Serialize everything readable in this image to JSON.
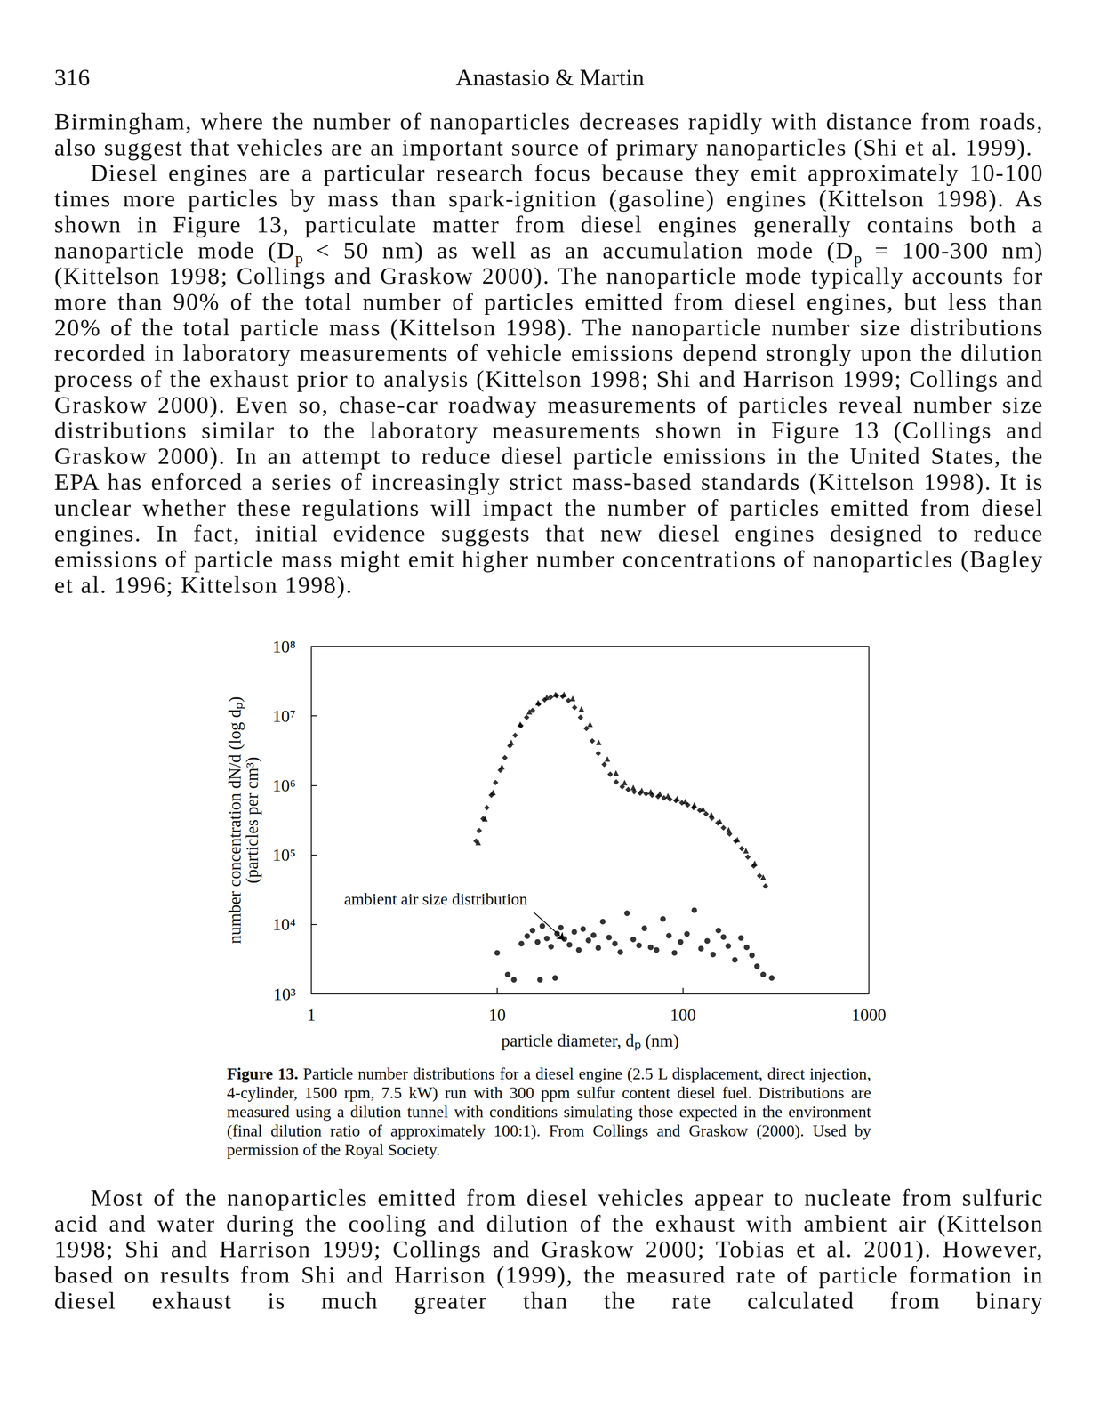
{
  "header": {
    "page_number": "316",
    "running_head": "Anastasio & Martin"
  },
  "paragraphs_before": [
    [
      "Birmingham, where the number of nanoparticles decreases rapidly with distance from roads, also suggest that vehicles are an important source of primary nanoparticles (Shi et al. 1999)."
    ],
    [
      "Diesel engines are a particular research focus because they emit approximately 10-100 times more particles by mass than spark-ignition (gasoline) engines (Kittelson 1998). As shown in Figure 13, particulate matter from diesel engines generally contains both a nanoparticle mode (D",
      {
        "sub": "p"
      },
      " < 50 nm) as well as an accumulation mode (D",
      {
        "sub": "p"
      },
      " = 100-300 nm) (Kittelson 1998; Collings and Graskow 2000). The nanoparticle mode typically accounts for more than 90% of the total number of particles emitted from diesel engines, but less than 20% of the total particle mass (Kittelson 1998). The nanoparticle number size distributions recorded in laboratory measurements of vehicle emissions depend strongly upon the dilution process of the exhaust prior to analysis (Kittelson 1998; Shi and Harrison 1999; Collings and Graskow 2000). Even so, chase-car roadway measurements of particles reveal number size distributions similar to the laboratory measurements shown in Figure 13 (Collings and Graskow 2000). In an attempt to reduce diesel particle emissions in the United States, the EPA has enforced a series of increasingly strict mass-based standards (Kittelson 1998). It is unclear whether these regulations will impact the number of particles emitted from diesel engines. In fact, initial evidence suggests that new diesel engines designed to reduce emissions of particle mass might emit higher number concentrations of nanoparticles (Bagley et al. 1996; Kittelson 1998)."
    ]
  ],
  "chart_data": {
    "type": "scatter",
    "log": true,
    "grid": false,
    "x_label": "particle diameter, dₚ (nm)",
    "y_label": [
      "number concentration dN/d (log dₚ)",
      "(particles per cm³)"
    ],
    "xlim": [
      1,
      1000
    ],
    "ylim": [
      1000,
      100000000
    ],
    "xticks": [
      1,
      10,
      100,
      1000
    ],
    "yticks": [
      {
        "value": 1000,
        "label": "10³"
      },
      {
        "value": 10000,
        "label": "10⁴"
      },
      {
        "value": 100000,
        "label": "10⁵"
      },
      {
        "value": 1000000,
        "label": "10⁶"
      },
      {
        "value": 10000000,
        "label": "10⁷"
      },
      {
        "value": 100000000,
        "label": "10⁸"
      }
    ],
    "series": [
      {
        "color": "#000000",
        "marker": "diamond",
        "x": [
          7.7,
          8.0,
          8.4,
          8.8,
          9.3,
          9.8,
          10.4,
          11.0,
          11.7,
          12.5,
          13.4,
          14.4,
          15.5,
          16.7,
          18.0,
          19.4,
          20.9,
          22.5,
          24.2,
          26.1,
          28.1,
          30.2,
          32.5,
          35.0,
          37.7,
          40.6,
          43.7,
          47.1,
          50.7,
          54.6,
          58.8,
          63.3,
          68.2,
          73.4,
          79.0,
          85.1,
          91.6,
          98.6,
          106,
          114,
          123,
          133,
          143,
          154,
          165,
          178,
          192,
          207,
          223,
          240,
          258,
          278
        ],
        "values": [
          158000,
          224000,
          331000,
          479000,
          724000,
          1100000,
          1660000,
          2510000,
          3720000,
          5250000,
          7240000,
          9550000,
          12000000,
          14800000,
          17000000,
          18600000,
          19500000,
          19100000,
          16600000,
          13200000,
          9550000,
          6610000,
          4370000,
          2880000,
          2000000,
          1450000,
          1120000,
          955000,
          871000,
          813000,
          776000,
          759000,
          724000,
          692000,
          661000,
          631000,
          603000,
          562000,
          525000,
          479000,
          437000,
          389000,
          339000,
          288000,
          245000,
          200000,
          158000,
          123000,
          93300,
          69200,
          50100,
          35500
        ]
      },
      {
        "color": "#000000",
        "marker": "triangle",
        "x": [
          7.9,
          8.6,
          9.5,
          10.6,
          11.9,
          13.3,
          14.9,
          16.6,
          18.5,
          20.6,
          22.9,
          25.5,
          28.4,
          31.6,
          35.2,
          39.2,
          43.6,
          48.5,
          54,
          60,
          67,
          75,
          83,
          93,
          103,
          115,
          128,
          142,
          158,
          176,
          196,
          218,
          243,
          270
        ],
        "values": [
          151000,
          331000,
          794000,
          1860000,
          4170000,
          7590000,
          11500000,
          15500000,
          18600000,
          20400000,
          20400000,
          17800000,
          12600000,
          7590000,
          4170000,
          2400000,
          1510000,
          1100000,
          933000,
          851000,
          813000,
          759000,
          708000,
          646000,
          589000,
          525000,
          457000,
          380000,
          302000,
          229000,
          166000,
          115000,
          75900,
          47900
        ]
      },
      {
        "color": "#000000",
        "marker": "circle",
        "x": [
          10,
          11.4,
          12.3,
          13.5,
          14.5,
          15.5,
          16.5,
          17,
          17.5,
          18.5,
          19.5,
          20.5,
          21,
          22,
          23,
          24.5,
          26,
          27.5,
          29,
          31,
          33,
          35,
          37,
          40,
          43,
          46,
          50,
          54,
          58,
          62,
          67,
          72,
          78,
          84,
          90,
          97,
          105,
          115,
          125,
          135,
          145,
          155,
          165,
          175,
          190,
          205,
          220,
          235,
          250,
          270,
          300
        ],
        "values": [
          3900,
          1900,
          1600,
          5300,
          6800,
          8200,
          5600,
          1600,
          9500,
          6300,
          4800,
          1700,
          7400,
          9000,
          6200,
          5100,
          7800,
          4300,
          8600,
          5900,
          7000,
          4600,
          11000,
          6500,
          5300,
          4000,
          14500,
          6100,
          5000,
          8800,
          4700,
          4300,
          12000,
          6900,
          3900,
          5600,
          7300,
          16000,
          4500,
          5800,
          3700,
          8200,
          6600,
          4900,
          3100,
          6400,
          4700,
          3600,
          2500,
          1900,
          1700
        ]
      }
    ],
    "annotations": [
      {
        "text": "ambient air size distribution",
        "text_xy": [
          1.5,
          23000
        ],
        "xytext": [
          15.7,
          15000
        ],
        "xy": [
          23,
          6000
        ]
      }
    ]
  },
  "caption": {
    "label": "Figure 13.",
    "text": "Particle number distributions for a diesel engine (2.5 L displacement, direct injection, 4-cylinder, 1500 rpm, 7.5 kW) run with 300 ppm sulfur content diesel fuel. Distributions are measured using a dilution tunnel with conditions simulating those expected in the environment (final dilution ratio of approximately 100:1). From Collings and Graskow (2000). Used by permission of the Royal Society."
  },
  "paragraphs_after": [
    [
      "Most of the nanoparticles emitted from diesel vehicles appear to nucleate from sulfuric acid and water during the cooling and dilution of the exhaust with ambient air (Kittelson 1998; Shi and Harrison 1999; Collings and Graskow 2000; Tobias et al. 2001). However, based on results from Shi and Harrison (1999), the measured rate of particle formation in diesel exhaust is much greater than the rate calculated from binary"
    ]
  ]
}
